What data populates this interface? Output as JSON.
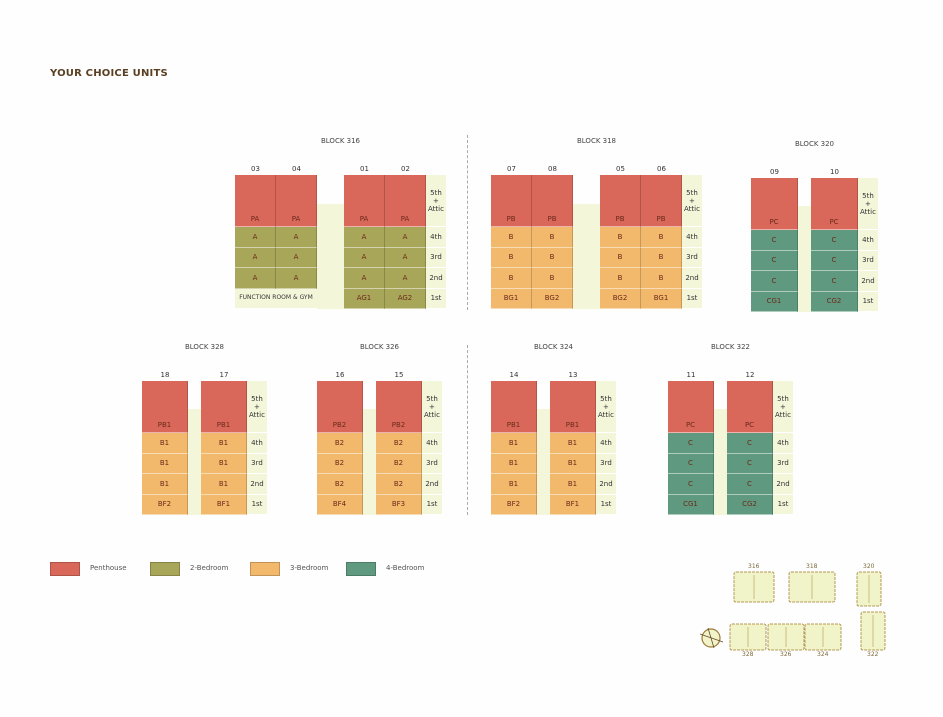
{
  "title": "YOUR CHOICE UNITS",
  "colors": {
    "penthouse": "#d9685a",
    "two_bedroom": "#a8a659",
    "three_bedroom": "#f2b96c",
    "four_bedroom": "#5f9a80",
    "floor_label_bg": "#f4f6da"
  },
  "floors": [
    "5th\n+\nAttic",
    "4th",
    "3rd",
    "2nd",
    "1st"
  ],
  "blocks": [
    {
      "name": "BLOCK 316",
      "units": [
        {
          "no": "03",
          "type": "two_bedroom",
          "ph": "PA",
          "cells": [
            "A",
            "A",
            "A",
            ""
          ]
        },
        {
          "no": "04",
          "type": "two_bedroom",
          "ph": "PA",
          "cells": [
            "A",
            "A",
            "A",
            ""
          ]
        },
        {
          "no": "01",
          "type": "two_bedroom",
          "ph": "PA",
          "cells": [
            "A",
            "A",
            "A",
            "AG1"
          ]
        },
        {
          "no": "02",
          "type": "two_bedroom",
          "ph": "PA",
          "cells": [
            "A",
            "A",
            "A",
            "AG2"
          ]
        }
      ],
      "special_1st": "FUNCTION ROOM & GYM"
    },
    {
      "name": "BLOCK 318",
      "units": [
        {
          "no": "07",
          "type": "three_bedroom",
          "ph": "PB",
          "cells": [
            "B",
            "B",
            "B",
            "BG1"
          ]
        },
        {
          "no": "08",
          "type": "three_bedroom",
          "ph": "PB",
          "cells": [
            "B",
            "B",
            "B",
            "BG2"
          ]
        },
        {
          "no": "05",
          "type": "three_bedroom",
          "ph": "PB",
          "cells": [
            "B",
            "B",
            "B",
            "BG2"
          ]
        },
        {
          "no": "06",
          "type": "three_bedroom",
          "ph": "PB",
          "cells": [
            "B",
            "B",
            "B",
            "BG1"
          ]
        }
      ]
    },
    {
      "name": "BLOCK 320",
      "units": [
        {
          "no": "09",
          "type": "four_bedroom",
          "ph": "PC",
          "cells": [
            "C",
            "C",
            "C",
            "CG1"
          ]
        },
        {
          "no": "10",
          "type": "four_bedroom",
          "ph": "PC",
          "cells": [
            "C",
            "C",
            "C",
            "CG2"
          ]
        }
      ]
    },
    {
      "name": "BLOCK 328",
      "units": [
        {
          "no": "18",
          "type": "three_bedroom",
          "ph": "PB1",
          "cells": [
            "B1",
            "B1",
            "B1",
            "BF2"
          ]
        },
        {
          "no": "17",
          "type": "three_bedroom",
          "ph": "PB1",
          "cells": [
            "B1",
            "B1",
            "B1",
            "BF1"
          ]
        }
      ]
    },
    {
      "name": "BLOCK 326",
      "units": [
        {
          "no": "16",
          "type": "three_bedroom",
          "ph": "PB2",
          "cells": [
            "B2",
            "B2",
            "B2",
            "BF4"
          ]
        },
        {
          "no": "15",
          "type": "three_bedroom",
          "ph": "PB2",
          "cells": [
            "B2",
            "B2",
            "B2",
            "BF3"
          ]
        }
      ]
    },
    {
      "name": "BLOCK 324",
      "units": [
        {
          "no": "14",
          "type": "three_bedroom",
          "ph": "PB1",
          "cells": [
            "B1",
            "B1",
            "B1",
            "BF2"
          ]
        },
        {
          "no": "13",
          "type": "three_bedroom",
          "ph": "PB1",
          "cells": [
            "B1",
            "B1",
            "B1",
            "BF1"
          ]
        }
      ]
    },
    {
      "name": "BLOCK 322",
      "units": [
        {
          "no": "11",
          "type": "four_bedroom",
          "ph": "PC",
          "cells": [
            "C",
            "C",
            "C",
            "CG1"
          ]
        },
        {
          "no": "12",
          "type": "four_bedroom",
          "ph": "PC",
          "cells": [
            "C",
            "C",
            "C",
            "CG2"
          ]
        }
      ]
    }
  ],
  "legend": [
    {
      "label": "Penthouse",
      "type": "penthouse"
    },
    {
      "label": "2-Bedroom",
      "type": "two_bedroom"
    },
    {
      "label": "3-Bedroom",
      "type": "three_bedroom"
    },
    {
      "label": "4-Bedroom",
      "type": "four_bedroom"
    }
  ],
  "site_plan": {
    "blocks": [
      "316",
      "318",
      "320",
      "328",
      "326",
      "324",
      "322"
    ],
    "compass_icon": "north-compass-icon"
  }
}
